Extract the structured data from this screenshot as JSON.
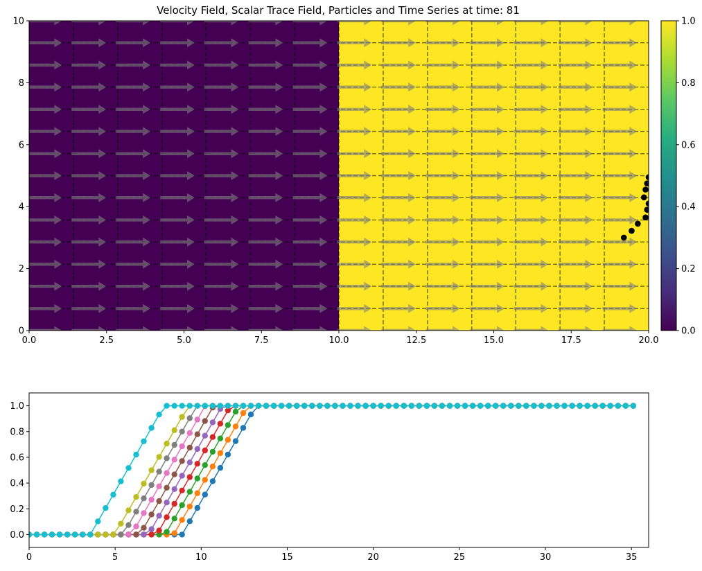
{
  "page": {
    "title": "Velocity Field, Scalar Trace Field, Particles and Time Series at time: 81"
  },
  "colors": {
    "low": "#440154",
    "high": "#fde725",
    "arrow": "#808080",
    "particle": "#000000",
    "axis": "#000000"
  },
  "chart_data": [
    {
      "type": "heatmap",
      "title": "Velocity Field, Scalar Trace Field, Particles and Time Series at time: 81",
      "xlim": [
        0,
        20
      ],
      "ylim": [
        0,
        10
      ],
      "x_ticks": [
        "0.0",
        "2.5",
        "5.0",
        "7.5",
        "10.0",
        "12.5",
        "15.0",
        "17.5",
        "20.0"
      ],
      "y_ticks": [
        "0",
        "2",
        "4",
        "6",
        "8",
        "10"
      ],
      "field": {
        "low_region_x": [
          0,
          10
        ],
        "low_value": 0.0,
        "high_region_x": [
          10,
          20
        ],
        "high_value": 1.0
      },
      "cell_lines_x": [
        1.43,
        2.86,
        4.29,
        5.71,
        7.14,
        8.57,
        10.0,
        11.43,
        12.86,
        14.29,
        15.71,
        17.14,
        18.57
      ],
      "cell_lines_y": [
        0.71,
        1.43,
        2.14,
        2.86,
        3.57,
        4.29,
        5.0,
        5.71,
        6.43,
        7.14,
        7.86,
        8.57,
        9.29
      ],
      "velocity": {
        "u": 1,
        "v": 0,
        "arrow_rows_y": [
          0,
          0.71,
          1.43,
          2.14,
          2.86,
          3.57,
          4.29,
          5.0,
          5.71,
          6.43,
          7.14,
          7.86,
          8.57,
          9.29,
          10.0
        ],
        "arrow_cols_x": [
          0.5,
          1.93,
          3.36,
          4.79,
          6.21,
          7.64,
          9.07,
          10.5,
          11.93,
          13.36,
          14.79,
          16.21,
          17.64,
          19.07
        ]
      },
      "particles": [
        {
          "x": 19.2,
          "y": 3.0
        },
        {
          "x": 19.45,
          "y": 3.22
        },
        {
          "x": 19.65,
          "y": 3.45
        },
        {
          "x": 19.9,
          "y": 3.65
        },
        {
          "x": 19.95,
          "y": 3.9
        },
        {
          "x": 20.0,
          "y": 4.1
        },
        {
          "x": 19.85,
          "y": 4.3
        },
        {
          "x": 19.9,
          "y": 4.55
        },
        {
          "x": 19.95,
          "y": 4.75
        },
        {
          "x": 20.0,
          "y": 4.95
        }
      ],
      "colorbar": {
        "range": [
          0,
          1
        ],
        "ticks": [
          "0.0",
          "0.2",
          "0.4",
          "0.6",
          "0.8",
          "1.0"
        ]
      }
    },
    {
      "type": "line",
      "xlim": [
        0,
        36
      ],
      "ylim": [
        -0.1,
        1.1
      ],
      "x_ticks": [
        "0",
        "5",
        "10",
        "15",
        "20",
        "25",
        "30",
        "35"
      ],
      "y_ticks": [
        "0.0",
        "0.2",
        "0.4",
        "0.6",
        "0.8",
        "1.0"
      ],
      "x_step": 0.4444,
      "x_end": 35.55,
      "ramp_slope": 0.2333,
      "series": [
        {
          "color": "#1f77b4",
          "ramp_start": 8.89
        },
        {
          "color": "#ff7f0e",
          "ramp_start": 8.4
        },
        {
          "color": "#2ca02c",
          "ramp_start": 7.91
        },
        {
          "color": "#d62728",
          "ramp_start": 7.42
        },
        {
          "color": "#9467bd",
          "ramp_start": 6.93
        },
        {
          "color": "#8c564b",
          "ramp_start": 6.44
        },
        {
          "color": "#e377c2",
          "ramp_start": 5.95
        },
        {
          "color": "#7f7f7f",
          "ramp_start": 5.46
        },
        {
          "color": "#bcbd22",
          "ramp_start": 4.97
        },
        {
          "color": "#17becf",
          "ramp_start": 3.56
        }
      ]
    }
  ]
}
